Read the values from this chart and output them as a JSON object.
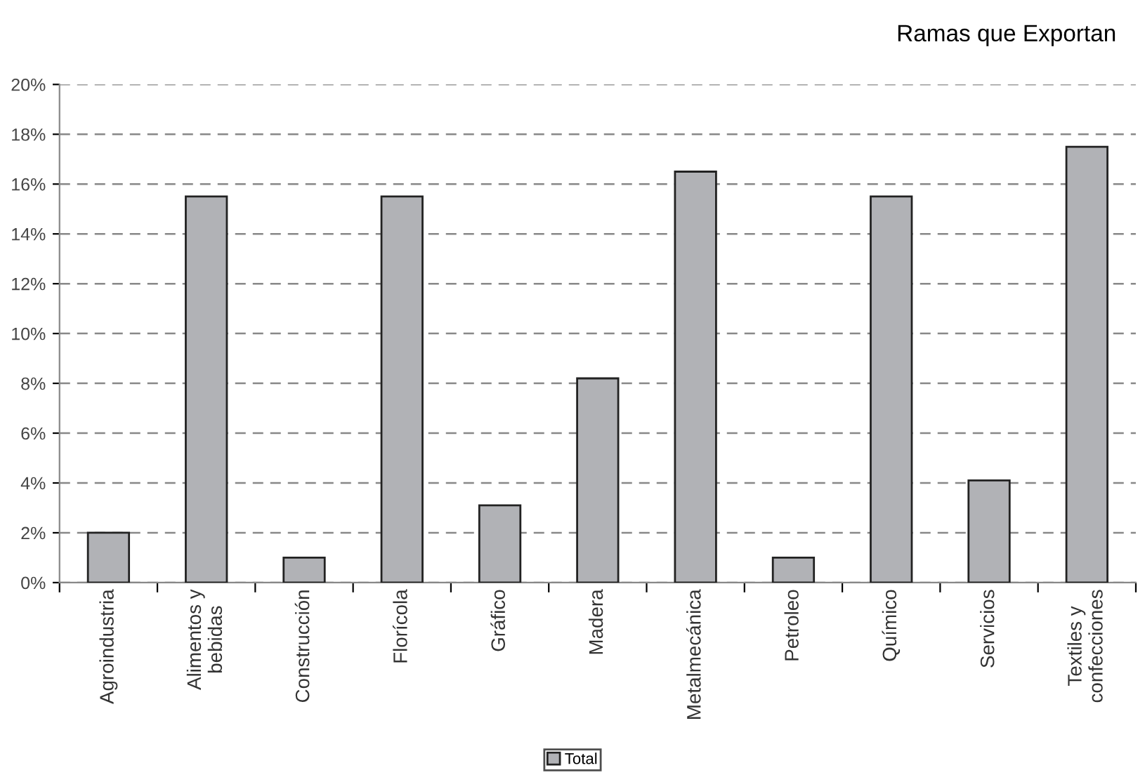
{
  "chart_data": {
    "type": "bar",
    "title": "Ramas que Exportan",
    "categories": [
      "Agroindustria",
      "Alimentos y\nbebidas",
      "Construcción",
      "Florícola",
      "Gráfico",
      "Madera",
      "Metalmecánica",
      "Petroleo",
      "Químico",
      "Servicios",
      "Textiles y\nconfecciones"
    ],
    "series": [
      {
        "name": "Total",
        "color": "#b1b2b6",
        "values": [
          2.0,
          15.5,
          1.0,
          15.5,
          3.1,
          8.2,
          16.5,
          1.0,
          15.5,
          4.1,
          17.5
        ]
      }
    ],
    "ylim": [
      0,
      20
    ],
    "yticks": [
      {
        "value": 0,
        "label": "0%"
      },
      {
        "value": 2,
        "label": "2%"
      },
      {
        "value": 4,
        "label": "4%"
      },
      {
        "value": 6,
        "label": "6%"
      },
      {
        "value": 8,
        "label": "8%"
      },
      {
        "value": 10,
        "label": "10%"
      },
      {
        "value": 12,
        "label": "12%"
      },
      {
        "value": 14,
        "label": "14%"
      },
      {
        "value": 16,
        "label": "16%"
      },
      {
        "value": 18,
        "label": "18%"
      },
      {
        "value": 20,
        "label": "20%"
      }
    ],
    "grid": "y",
    "legend": "bottom"
  }
}
